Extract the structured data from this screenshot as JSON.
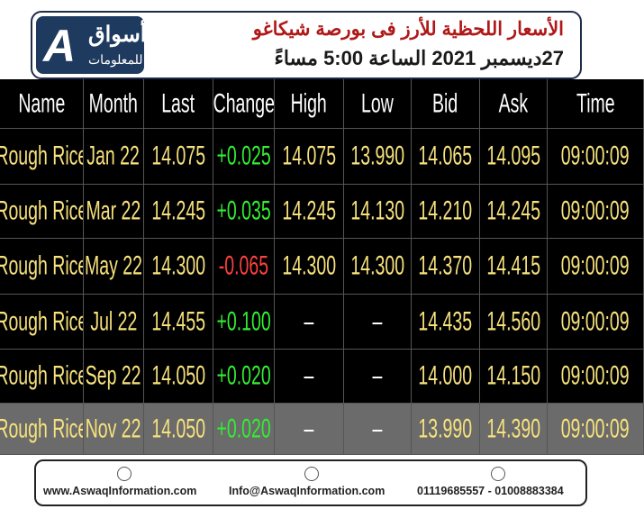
{
  "header": {
    "logo_name": "أسواق",
    "logo_sub": "للمعلومات",
    "title": "الأسعار اللحظية للأرز فى بورصة شيكاغو",
    "subtitle": "27ديسمبر 2021 الساعة 5:00 مساءً"
  },
  "table": {
    "columns": [
      "Name",
      "Month",
      "Last",
      "Change",
      "High",
      "Low",
      "Bid",
      "Ask",
      "Time"
    ],
    "rows": [
      [
        "Rough Rice",
        "Jan 22",
        "14.075",
        "+0.025",
        "14.075",
        "13.990",
        "14.065",
        "14.095",
        "09:00:09"
      ],
      [
        "Rough Rice",
        "Mar 22",
        "14.245",
        "+0.035",
        "14.245",
        "14.130",
        "14.210",
        "14.245",
        "09:00:09"
      ],
      [
        "Rough Rice",
        "May 22",
        "14.300",
        "-0.065",
        "14.300",
        "14.300",
        "14.370",
        "14.415",
        "09:00:09"
      ],
      [
        "Rough Rice",
        "Jul 22",
        "14.455",
        "+0.100",
        "–",
        "–",
        "14.435",
        "14.560",
        "09:00:09"
      ],
      [
        "Rough Rice",
        "Sep 22",
        "14.050",
        "+0.020",
        "–",
        "–",
        "14.000",
        "14.150",
        "09:00:09"
      ],
      [
        "Rough Rice",
        "Nov 22",
        "14.050",
        "+0.020",
        "–",
        "–",
        "13.990",
        "14.390",
        "09:00:09"
      ]
    ]
  },
  "footer": {
    "website": "www.AswaqInformation.com",
    "email": "Info@AswaqInformation.com",
    "phones": "01119685557 - 01008883384"
  }
}
